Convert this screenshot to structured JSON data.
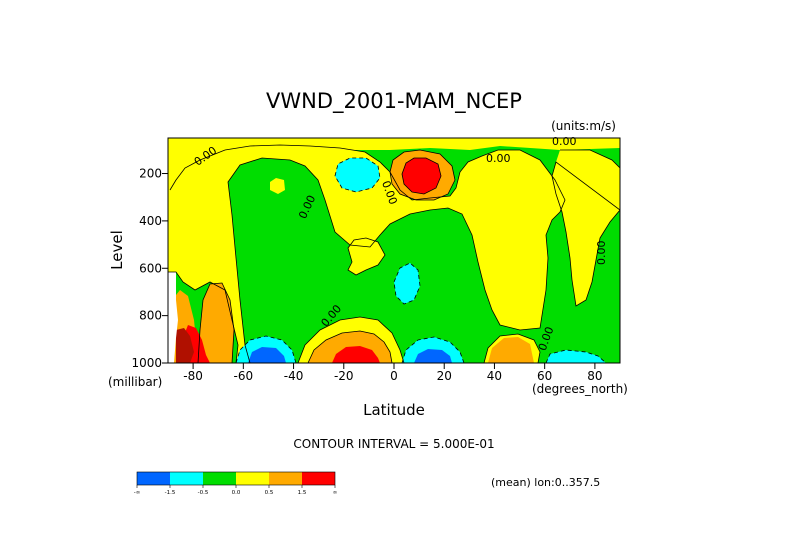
{
  "chart_data": {
    "type": "heatmap",
    "title": "VWND_2001-MAM_NCEP",
    "units_label": "(units:m/s)",
    "xlabel": "Latitude",
    "x_units": "(degrees_north)",
    "ylabel": "Level",
    "y_units": "(millibar)",
    "xlim": [
      -90,
      90
    ],
    "ylim": [
      1000,
      50
    ],
    "x_ticks": [
      -80,
      -60,
      -40,
      -20,
      0,
      20,
      40,
      60,
      80
    ],
    "y_ticks": [
      200,
      400,
      600,
      800,
      1000
    ],
    "contour_interval_label": "CONTOUR INTERVAL = 5.000E-01",
    "mean_label": "(mean) lon:0..357.5",
    "contour_labels": [
      "0.00",
      "0.00",
      "0.00",
      "0.00",
      "0.00",
      "0.00",
      "0.00",
      "0.00"
    ],
    "legend": {
      "colors": [
        "#0066ff",
        "#00ffff",
        "#00dd00",
        "#ffff00",
        "#ffaa00",
        "#ff0000"
      ],
      "tick_labels": [
        "-∞",
        "-1.5",
        "-0.5",
        "0.0",
        "0.5",
        "1.5",
        "∞"
      ]
    }
  }
}
